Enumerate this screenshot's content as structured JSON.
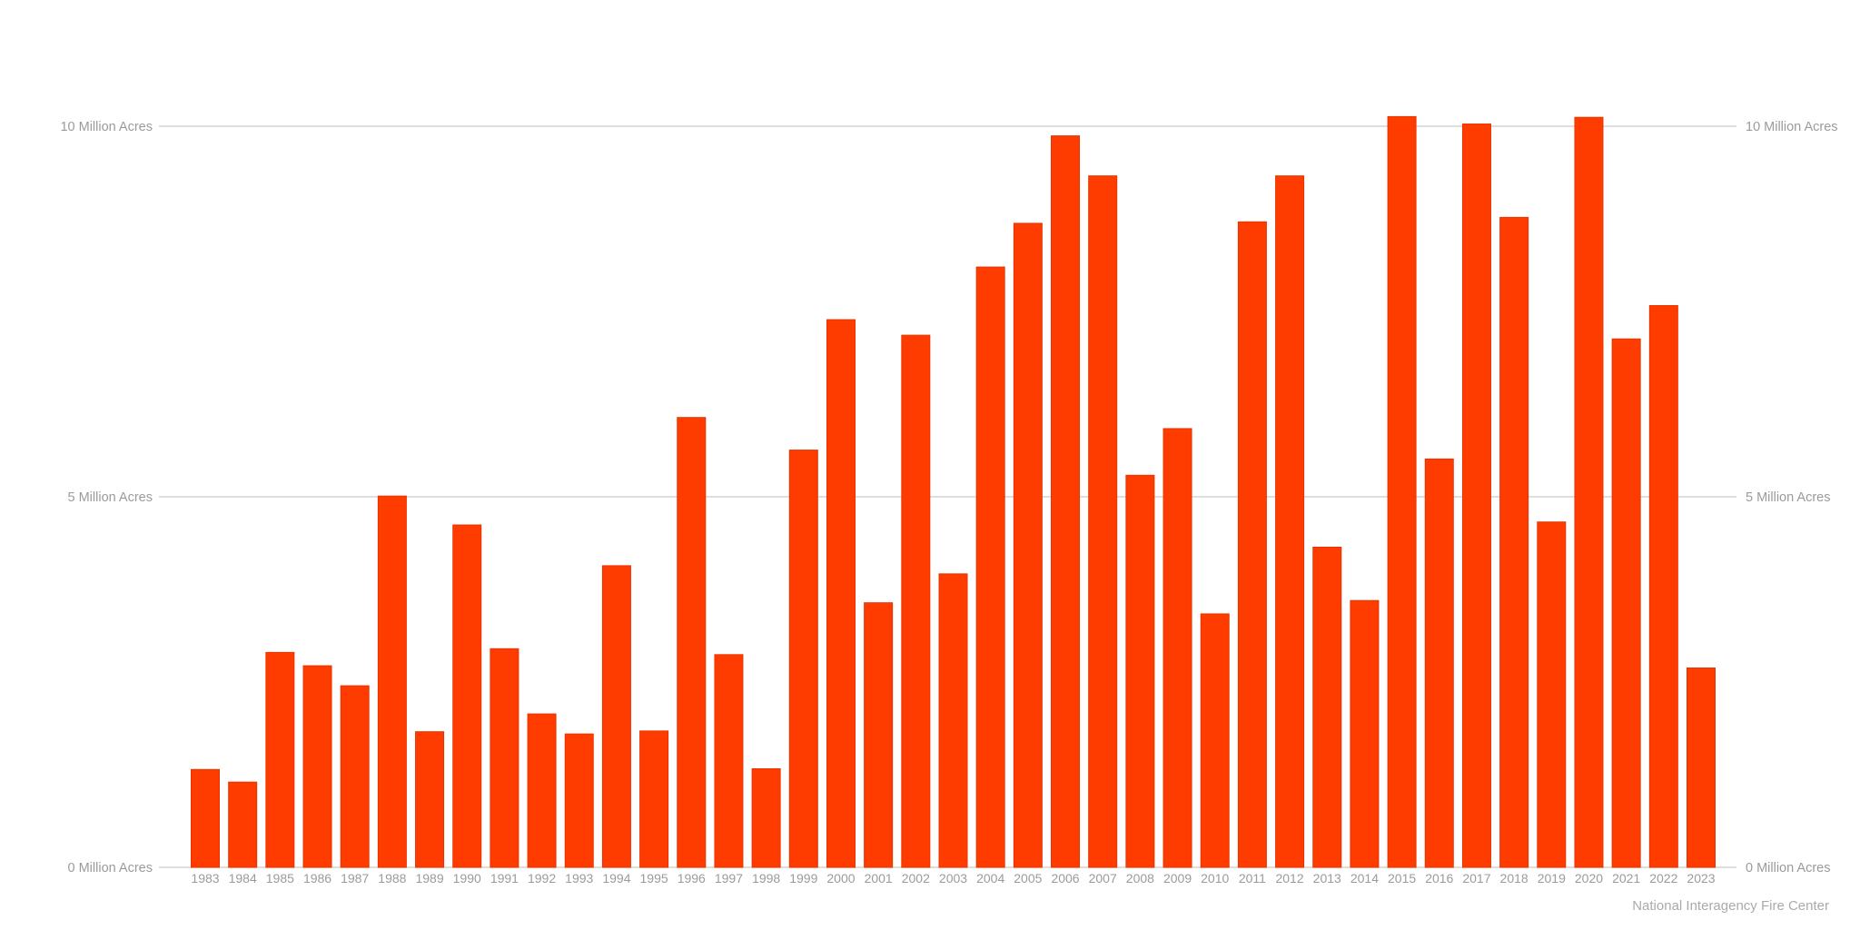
{
  "chart_data": {
    "type": "bar",
    "title": "",
    "xlabel": "",
    "ylabel": "",
    "source": "National Interagency Fire Center",
    "ylim": [
      0,
      10
    ],
    "grid": true,
    "y_ticks": [
      {
        "value": 0,
        "label": "0 Million Acres"
      },
      {
        "value": 5,
        "label": "5 Million Acres"
      },
      {
        "value": 10,
        "label": "10 Million Acres"
      }
    ],
    "categories": [
      "1983",
      "1984",
      "1985",
      "1986",
      "1987",
      "1988",
      "1989",
      "1990",
      "1991",
      "1992",
      "1993",
      "1994",
      "1995",
      "1996",
      "1997",
      "1998",
      "1999",
      "2000",
      "2001",
      "2002",
      "2003",
      "2004",
      "2005",
      "2006",
      "2007",
      "2008",
      "2009",
      "2010",
      "2011",
      "2012",
      "2013",
      "2014",
      "2015",
      "2016",
      "2017",
      "2018",
      "2019",
      "2020",
      "2021",
      "2022",
      "2023"
    ],
    "values": [
      1.32,
      1.15,
      2.9,
      2.72,
      2.45,
      5.01,
      1.83,
      4.62,
      2.95,
      2.07,
      1.8,
      4.07,
      1.84,
      6.07,
      2.87,
      1.33,
      5.63,
      7.39,
      3.57,
      7.18,
      3.96,
      8.1,
      8.69,
      9.87,
      9.33,
      5.29,
      5.92,
      3.42,
      8.71,
      9.33,
      4.32,
      3.6,
      10.13,
      5.51,
      10.03,
      8.77,
      4.66,
      10.12,
      7.13,
      7.58,
      2.69
    ],
    "colors": {
      "bar": "#ff3c00",
      "bar_edge": "#e83300",
      "grid": "#d4d4d4",
      "text": "#9b9b9b"
    }
  }
}
